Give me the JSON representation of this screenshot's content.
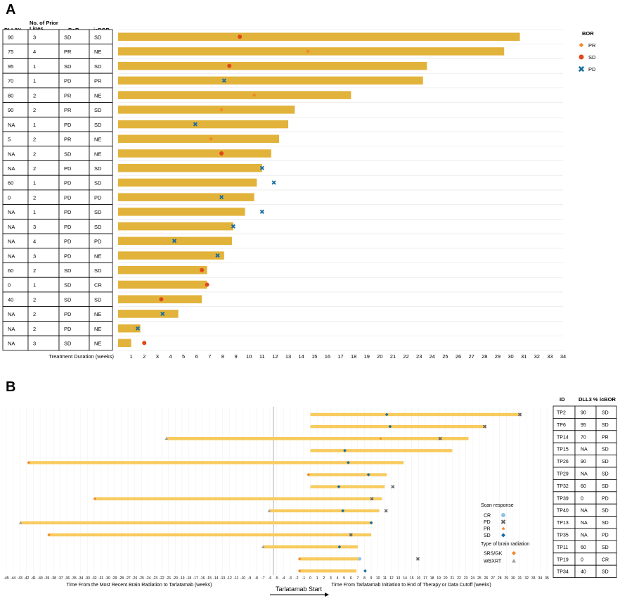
{
  "panelA": {
    "label": "A",
    "columns": [
      "DLL3%",
      "No. of Prior Lines",
      "BoR",
      "icBOR"
    ],
    "rows": [
      [
        "90",
        "3",
        "SD",
        "SD"
      ],
      [
        "75",
        "4",
        "PR",
        "NE"
      ],
      [
        "95",
        "1",
        "SD",
        "SD"
      ],
      [
        "70",
        "1",
        "PD",
        "PR"
      ],
      [
        "80",
        "2",
        "PR",
        "NE"
      ],
      [
        "90",
        "2",
        "PR",
        "SD"
      ],
      [
        "NA",
        "1",
        "PD",
        "SD"
      ],
      [
        "5",
        "2",
        "PR",
        "NE"
      ],
      [
        "NA",
        "2",
        "SD",
        "NE"
      ],
      [
        "NA",
        "2",
        "PD",
        "SD"
      ],
      [
        "60",
        "1",
        "PD",
        "SD"
      ],
      [
        "0",
        "2",
        "PD",
        "PD"
      ],
      [
        "NA",
        "1",
        "PD",
        "SD"
      ],
      [
        "NA",
        "3",
        "PD",
        "SD"
      ],
      [
        "NA",
        "4",
        "PD",
        "PD"
      ],
      [
        "NA",
        "3",
        "PD",
        "NE"
      ],
      [
        "60",
        "2",
        "SD",
        "SD"
      ],
      [
        "0",
        "1",
        "SD",
        "CR"
      ],
      [
        "40",
        "2",
        "SD",
        "SD"
      ],
      [
        "NA",
        "2",
        "PD",
        "NE"
      ],
      [
        "NA",
        "2",
        "PD",
        "NE"
      ],
      [
        "NA",
        "3",
        "SD",
        "NE"
      ]
    ],
    "legend": {
      "title": "BOR",
      "items": [
        {
          "label": "PR",
          "shape": "diamond",
          "color": "#f0882a"
        },
        {
          "label": "SD",
          "shape": "circle",
          "color": "#e0481a"
        },
        {
          "label": "PD",
          "shape": "cross",
          "color": "#1a6e9e"
        }
      ]
    }
  },
  "panelB": {
    "label": "B",
    "table_header": [
      "ID",
      "DLL3 %",
      "icBOR"
    ],
    "table_rows": [
      [
        "TP2",
        "90",
        "SD"
      ],
      [
        "TP6",
        "95",
        "SD"
      ],
      [
        "TP14",
        "70",
        "PR"
      ],
      [
        "TP15",
        "NA",
        "SD"
      ],
      [
        "TP26",
        "90",
        "SD"
      ],
      [
        "TP29",
        "NA",
        "SD"
      ],
      [
        "TP32",
        "60",
        "SD"
      ],
      [
        "TP39",
        "0",
        "PD"
      ],
      [
        "TP40",
        "NA",
        "SD"
      ],
      [
        "TP13",
        "NA",
        "SD"
      ],
      [
        "TP35",
        "NA",
        "PD"
      ],
      [
        "TP11",
        "60",
        "SD"
      ],
      [
        "TP19",
        "0",
        "CR"
      ],
      [
        "TP34",
        "40",
        "SD"
      ]
    ],
    "legend": {
      "scan_title": "Scan response",
      "scan_items": [
        {
          "label": "CR",
          "shape": "circle",
          "color": "#8fc3e8"
        },
        {
          "label": "PD",
          "shape": "cross",
          "color": "#666666"
        },
        {
          "label": "PR",
          "shape": "star",
          "color": "#f0882a"
        },
        {
          "label": "SD",
          "shape": "diamond",
          "color": "#1a6e9e"
        }
      ],
      "radiation_title": "Type of brain radiation",
      "radiation_items": [
        {
          "label": "SRS/GK",
          "shape": "diamond",
          "color": "#f0882a"
        },
        {
          "label": "WBXRT",
          "shape": "triangle",
          "color": "#a0a0a0"
        }
      ]
    },
    "xlabel_left": "Time From the Most Recent Brain Radiation to Tarlatamab (weeks)",
    "xlabel_right": "Time From Tarlatamab Initiation to End of Therapy or Data Cutoff (weeks)",
    "arrow_label": "Tarlatamab Start"
  },
  "chart_data": [
    {
      "type": "bar",
      "orientation": "horizontal",
      "xlabel": "Treatment Duration (weeks)",
      "xlim": [
        0,
        34
      ],
      "xticks": [
        1,
        2,
        3,
        4,
        5,
        6,
        7,
        8,
        9,
        10,
        11,
        12,
        13,
        14,
        15,
        16,
        17,
        18,
        19,
        20,
        21,
        22,
        23,
        24,
        25,
        26,
        27,
        28,
        29,
        30,
        31,
        32,
        33,
        34
      ],
      "bar_color": "#e2b33b",
      "values": [
        30.7,
        29.5,
        23.6,
        23.3,
        17.8,
        13.5,
        13.0,
        12.3,
        11.7,
        11.0,
        10.6,
        10.4,
        9.7,
        8.8,
        8.7,
        8.1,
        6.8,
        6.8,
        6.4,
        4.6,
        1.7,
        1.0
      ],
      "markers": [
        {
          "x": 9.3,
          "type": "SD"
        },
        {
          "x": 14.5,
          "type": "PR"
        },
        {
          "x": 8.5,
          "type": "SD"
        },
        {
          "x": 8.1,
          "type": "PD"
        },
        {
          "x": 10.4,
          "type": "PR"
        },
        {
          "x": 7.9,
          "type": "PR"
        },
        {
          "x": 5.9,
          "type": "PD"
        },
        {
          "x": 7.1,
          "type": "PR"
        },
        {
          "x": 7.9,
          "type": "SD"
        },
        {
          "x": 11.0,
          "type": "PD"
        },
        {
          "x": 11.9,
          "type": "PD"
        },
        {
          "x": 7.9,
          "type": "PD"
        },
        {
          "x": 11.0,
          "type": "PD"
        },
        {
          "x": 8.8,
          "type": "PD"
        },
        {
          "x": 4.3,
          "type": "PD"
        },
        {
          "x": 7.6,
          "type": "PD"
        },
        {
          "x": 6.4,
          "type": "SD"
        },
        {
          "x": 6.8,
          "type": "SD"
        },
        {
          "x": 3.3,
          "type": "SD"
        },
        {
          "x": 3.4,
          "type": "PD"
        },
        {
          "x": 1.5,
          "type": "PD"
        },
        {
          "x": 2.0,
          "type": "SD"
        }
      ]
    },
    {
      "type": "bar",
      "orientation": "horizontal",
      "xlim": [
        -45,
        35
      ],
      "xticks": [
        -45,
        -44,
        -43,
        -42,
        -41,
        -40,
        -39,
        -38,
        -37,
        -36,
        -35,
        -34,
        -33,
        -32,
        -31,
        -30,
        -29,
        -28,
        -27,
        -26,
        -25,
        -24,
        -23,
        -22,
        -21,
        -20,
        -19,
        -18,
        -17,
        -16,
        -15,
        -14,
        -13,
        -12,
        -11,
        -10,
        -9,
        -8,
        -7,
        -6,
        -5,
        -4,
        -3,
        -2,
        -1,
        0,
        1,
        2,
        3,
        4,
        5,
        6,
        7,
        8,
        9,
        10,
        11,
        12,
        13,
        14,
        15,
        16,
        17,
        18,
        19,
        20,
        21,
        22,
        23,
        24,
        25,
        26,
        27,
        28,
        29,
        30,
        31,
        32,
        33,
        34,
        35
      ],
      "bar_color": "#f8cb5e",
      "rows": [
        {
          "start": 0,
          "end": 31.0,
          "radiation": null,
          "scans": [
            {
              "x": 11.3,
              "type": "SD"
            },
            {
              "x": 31.0,
              "type": "PD"
            }
          ]
        },
        {
          "start": 0,
          "end": 26.0,
          "radiation": null,
          "scans": [
            {
              "x": 11.8,
              "type": "SD"
            },
            {
              "x": 25.8,
              "type": "PD"
            }
          ]
        },
        {
          "start": -21.3,
          "end": 23.4,
          "radiation": "WBXRT",
          "scans": [
            {
              "x": 10.4,
              "type": "PR"
            },
            {
              "x": 19.2,
              "type": "PD"
            }
          ]
        },
        {
          "start": 0,
          "end": 21.0,
          "radiation": null,
          "scans": [
            {
              "x": 5.1,
              "type": "SD"
            }
          ]
        },
        {
          "start": -41.7,
          "end": 13.8,
          "radiation": "SRS/GK",
          "scans": [
            {
              "x": 5.6,
              "type": "SD"
            }
          ]
        },
        {
          "start": -0.3,
          "end": 11.3,
          "radiation": "SRS/GK",
          "scans": [
            {
              "x": 8.6,
              "type": "SD"
            }
          ]
        },
        {
          "start": 0,
          "end": 11.0,
          "radiation": null,
          "scans": [
            {
              "x": 4.2,
              "type": "SD"
            },
            {
              "x": 12.2,
              "type": "PD"
            }
          ]
        },
        {
          "start": -31.9,
          "end": 10.6,
          "radiation": "SRS/GK",
          "scans": [
            {
              "x": 9.1,
              "type": "PD"
            }
          ]
        },
        {
          "start": -6.1,
          "end": 10.2,
          "radiation": "WBXRT",
          "scans": [
            {
              "x": 4.8,
              "type": "SD"
            },
            {
              "x": 11.2,
              "type": "PD"
            }
          ]
        },
        {
          "start": -42.9,
          "end": 9.2,
          "radiation": "WBXRT",
          "scans": [
            {
              "x": 9.0,
              "type": "SD"
            }
          ]
        },
        {
          "start": -38.7,
          "end": 9.0,
          "radiation": "SRS/GK",
          "scans": [
            {
              "x": 6.0,
              "type": "PD"
            }
          ]
        },
        {
          "start": -7.0,
          "end": 7.0,
          "radiation": "WBXRT",
          "scans": [
            {
              "x": 4.3,
              "type": "SD"
            }
          ]
        },
        {
          "start": -1.6,
          "end": 7.3,
          "radiation": "SRS/GK",
          "scans": [
            {
              "x": 7.3,
              "type": "CR"
            },
            {
              "x": 15.9,
              "type": "PD"
            }
          ]
        },
        {
          "start": -1.6,
          "end": 6.8,
          "radiation": "SRS/GK",
          "scans": [
            {
              "x": 8.1,
              "type": "SD"
            }
          ]
        }
      ]
    }
  ]
}
